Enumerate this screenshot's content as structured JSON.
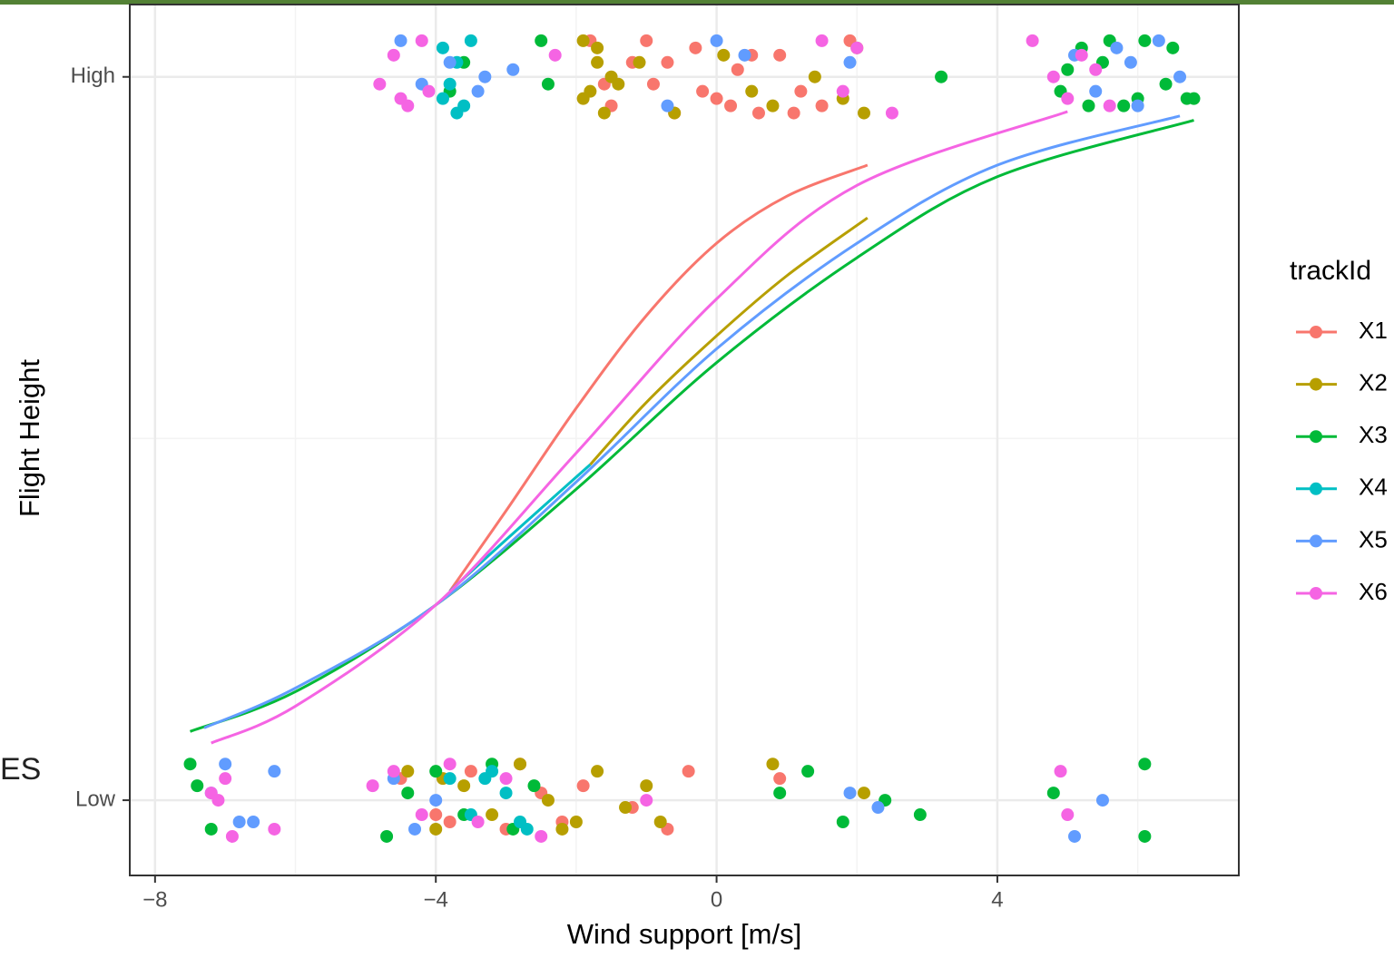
{
  "chart_data": {
    "type": "scatter",
    "fragment": "ES",
    "xlabel": "Wind support [m/s]",
    "ylabel": "Flight Height",
    "legend_title": "trackId",
    "legend": "right",
    "grid": true,
    "xlim": [
      -8.36,
      7.44
    ],
    "ylim": [
      -0.104,
      1.1
    ],
    "xticks": [
      {
        "value": -8,
        "label": "−8"
      },
      {
        "value": -4,
        "label": "−4"
      },
      0,
      4
    ],
    "yticks": [
      {
        "value": 0,
        "label": "Low"
      },
      {
        "value": 1,
        "label": "High"
      }
    ],
    "x_minor_ticks": [
      -6,
      -2,
      2,
      6
    ],
    "y_minor_ticks": [
      0.5
    ],
    "series": [
      {
        "name": "X1",
        "color": "#F8766D",
        "x": [
          -1.8,
          -1.5,
          -1.2,
          -0.9,
          -0.6,
          -0.3,
          0.0,
          0.3,
          0.6,
          0.9,
          1.2,
          1.5,
          -1.0,
          -0.2,
          0.5,
          1.1,
          -1.6,
          -0.7,
          0.2,
          1.9,
          -4.5,
          -4.0,
          -3.5,
          -3.0,
          -2.5,
          -2.2,
          -1.9,
          -1.2,
          -0.7,
          -0.4,
          0.9,
          -2.8,
          -3.8
        ],
        "y": [
          1.05,
          0.96,
          1.02,
          0.99,
          0.95,
          1.04,
          0.97,
          1.01,
          0.95,
          1.03,
          0.98,
          0.96,
          1.05,
          0.98,
          1.03,
          0.95,
          0.99,
          1.02,
          0.96,
          1.05,
          0.03,
          -0.02,
          0.04,
          -0.04,
          0.01,
          -0.03,
          0.02,
          -0.01,
          -0.04,
          0.04,
          0.03,
          0.05,
          -0.03
        ],
        "fit_x": [
          -3.8,
          -3,
          -2,
          -1,
          0,
          1,
          2.15
        ],
        "fit_y": [
          0.289,
          0.4,
          0.542,
          0.67,
          0.77,
          0.835,
          0.878
        ]
      },
      {
        "name": "X2",
        "color": "#B79F00",
        "x": [
          -1.9,
          -1.8,
          -1.7,
          -1.6,
          -1.5,
          -1.9,
          -1.7,
          -1.4,
          -1.1,
          -0.6,
          0.1,
          0.5,
          0.8,
          1.4,
          1.8,
          2.1,
          2.0,
          -4.4,
          -4.0,
          -3.6,
          -3.2,
          -2.8,
          -2.4,
          -2.0,
          -1.7,
          -1.3,
          -1.0,
          -0.8,
          0.8,
          2.1,
          -3.9,
          -2.2
        ],
        "y": [
          1.05,
          0.98,
          1.02,
          0.95,
          1.0,
          0.97,
          1.04,
          0.99,
          1.02,
          0.95,
          1.03,
          0.98,
          0.96,
          1.0,
          0.97,
          0.95,
          1.04,
          0.04,
          -0.04,
          0.02,
          -0.02,
          0.05,
          0.0,
          -0.03,
          0.04,
          -0.01,
          0.02,
          -0.03,
          0.05,
          0.01,
          0.03,
          -0.04
        ],
        "fit_x": [
          -1.8,
          -1,
          0,
          1,
          2.15
        ],
        "fit_y": [
          0.464,
          0.55,
          0.642,
          0.725,
          0.805
        ]
      },
      {
        "name": "X3",
        "color": "#00BA38",
        "x": [
          -3.8,
          -3.6,
          -2.5,
          -2.4,
          3.2,
          4.9,
          5.2,
          5.5,
          5.8,
          6.1,
          6.4,
          6.7,
          5.0,
          5.6,
          6.0,
          6.5,
          6.8,
          5.3,
          -7.5,
          -7.2,
          -7.4,
          -4.7,
          -4.4,
          -4.0,
          -3.6,
          -3.2,
          -2.9,
          -2.6,
          1.3,
          1.8,
          2.4,
          2.9,
          4.8,
          6.1,
          6.1,
          0.9
        ],
        "y": [
          0.98,
          1.02,
          1.05,
          0.99,
          1.0,
          0.98,
          1.04,
          1.02,
          0.96,
          1.05,
          0.99,
          0.97,
          1.01,
          1.05,
          0.97,
          1.04,
          0.97,
          0.96,
          0.05,
          -0.04,
          0.02,
          -0.05,
          0.01,
          0.04,
          -0.02,
          0.05,
          -0.04,
          0.02,
          0.04,
          -0.03,
          0.0,
          -0.02,
          0.01,
          -0.05,
          0.05,
          0.01
        ],
        "fit_x": [
          -7.5,
          -6,
          -4,
          -2,
          0,
          2,
          4,
          6.8
        ],
        "fit_y": [
          0.095,
          0.15,
          0.27,
          0.43,
          0.605,
          0.75,
          0.862,
          0.94
        ]
      },
      {
        "name": "X4",
        "color": "#00BFC4",
        "x": [
          -3.9,
          -3.8,
          -3.7,
          -3.6,
          -3.5,
          -3.9,
          -3.7,
          -3.8,
          -3.5,
          -3.2,
          -3.0,
          -2.8,
          -3.3,
          -2.7
        ],
        "y": [
          1.04,
          0.99,
          1.02,
          0.96,
          1.05,
          0.97,
          0.95,
          0.03,
          -0.02,
          0.04,
          0.01,
          -0.03,
          0.03,
          -0.04
        ],
        "fit_x": [
          -3.8,
          -3,
          -1.8
        ],
        "fit_y": [
          0.289,
          0.36,
          0.464
        ]
      },
      {
        "name": "X5",
        "color": "#619CFF",
        "x": [
          -4.5,
          -4.2,
          -3.8,
          -3.4,
          -3.3,
          -2.9,
          -0.7,
          0.0,
          0.4,
          1.9,
          5.1,
          5.4,
          5.7,
          6.0,
          6.3,
          6.6,
          5.9,
          -7.0,
          -6.8,
          -6.6,
          -6.3,
          -7.2,
          -4.6,
          -4.3,
          -4.0,
          1.9,
          2.3,
          5.1,
          5.5
        ],
        "y": [
          1.05,
          0.99,
          1.02,
          0.98,
          1.0,
          1.01,
          0.96,
          1.05,
          1.03,
          1.02,
          1.03,
          0.98,
          1.04,
          0.96,
          1.05,
          1.0,
          1.02,
          0.05,
          -0.03,
          -0.03,
          0.04,
          0.01,
          0.03,
          -0.04,
          0.0,
          0.01,
          -0.01,
          -0.05,
          0.0
        ],
        "fit_x": [
          -7.3,
          -6,
          -4,
          -2,
          0,
          2,
          4,
          6.6
        ],
        "fit_y": [
          0.1,
          0.155,
          0.27,
          0.44,
          0.624,
          0.77,
          0.878,
          0.946
        ]
      },
      {
        "name": "X6",
        "color": "#F564E3",
        "x": [
          -4.8,
          -4.6,
          -4.4,
          -4.2,
          -4.1,
          -2.3,
          1.5,
          1.8,
          2.0,
          2.5,
          4.5,
          4.8,
          5.0,
          5.2,
          5.4,
          5.6,
          -4.5,
          -7.2,
          -7.0,
          -6.9,
          -6.3,
          -4.9,
          -4.6,
          -4.2,
          -3.8,
          -3.4,
          -3.0,
          -2.5,
          -1.0,
          4.9,
          5.0,
          -7.1
        ],
        "y": [
          0.99,
          1.03,
          0.96,
          1.05,
          0.98,
          1.03,
          1.05,
          0.98,
          1.04,
          0.95,
          1.05,
          1.0,
          0.97,
          1.03,
          1.01,
          0.96,
          0.97,
          0.01,
          0.03,
          -0.05,
          -0.04,
          0.02,
          0.04,
          -0.02,
          0.05,
          -0.03,
          0.03,
          -0.05,
          0,
          0.04,
          -0.02,
          0
        ],
        "fit_x": [
          -7.2,
          -6,
          -4,
          -2,
          0,
          2,
          5.0
        ],
        "fit_y": [
          0.079,
          0.13,
          0.27,
          0.48,
          0.693,
          0.85,
          0.952
        ]
      }
    ]
  }
}
